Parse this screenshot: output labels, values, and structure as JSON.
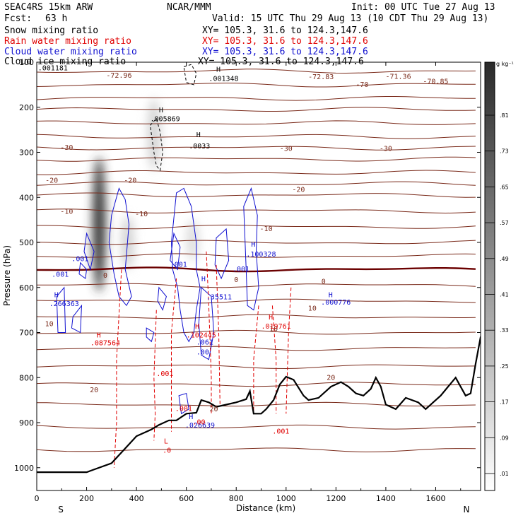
{
  "header": {
    "model": "SEAC4RS 15km ARW",
    "org": "NCAR/MMM",
    "init": "Init: 00 UTC Tue 27 Aug 13",
    "fcst_label": "Fcst:",
    "fcst_value": "63 h",
    "valid": "Valid: 15 UTC Thu 29 Aug 13 (10 CDT Thu 29 Aug 13)",
    "fields": [
      {
        "name": "Snow mixing ratio",
        "xy": "XY= 105.3, 31.6 to 124.3,147.6",
        "color": "#000000"
      },
      {
        "name": "Rain water mixing ratio",
        "xy": "XY= 105.3, 31.6 to 124.3,147.6",
        "color": "#e00000"
      },
      {
        "name": "Cloud water mixing ratio",
        "xy": "XY= 105.3, 31.6 to 124.3,147.6",
        "color": "#1010d0"
      },
      {
        "name": "Cloud ice mixing ratio",
        "xy": "XY= 105.3, 31.6 to 124.3,147.6",
        "color": "#000000"
      }
    ]
  },
  "chart_data": {
    "type": "heatmap",
    "xlabel": "Distance (km)",
    "ylabel": "Pressure (hPa)",
    "xlim": [
      0,
      1700
    ],
    "ylim": [
      1050,
      100
    ],
    "x_ticks": [
      0,
      200,
      400,
      600,
      800,
      1000,
      1200,
      1400,
      1600
    ],
    "y_ticks": [
      100,
      200,
      300,
      400,
      500,
      600,
      700,
      800,
      900,
      1000
    ],
    "x_end_labels": {
      "left": "S",
      "right": "N"
    },
    "colorbar": {
      "unit": "g kg⁻¹",
      "labels": [
        ".01",
        ".09",
        ".17",
        ".25",
        ".33",
        ".41",
        ".49",
        ".57",
        ".65",
        ".73",
        ".81"
      ]
    },
    "ice_shading": [
      {
        "x": 250,
        "p_top": 310,
        "p_bottom": 610,
        "peak": 0.9
      },
      {
        "x": 365,
        "p_top": 440,
        "p_bottom": 560,
        "peak": 0.2
      },
      {
        "x": 470,
        "p_top": 180,
        "p_bottom": 340,
        "peak": 0.2
      },
      {
        "x": 625,
        "p_top": 450,
        "p_bottom": 540,
        "peak": 0.15
      }
    ],
    "isotherms": [
      {
        "p": 120,
        "c": "#7a2a1a"
      },
      {
        "p": 150,
        "c": "#7a2a1a"
      },
      {
        "p": 180,
        "c": "#7a2a1a"
      },
      {
        "p": 205,
        "c": "#7a2a1a"
      },
      {
        "p": 235,
        "c": "#7a2a1a"
      },
      {
        "p": 265,
        "c": "#7a2a1a"
      },
      {
        "p": 290,
        "c": "#7a2a1a"
      },
      {
        "p": 315,
        "c": "#7a2a1a"
      },
      {
        "p": 345,
        "c": "#7a2a1a"
      },
      {
        "p": 370,
        "c": "#7a2a1a"
      },
      {
        "p": 395,
        "c": "#7a2a1a"
      },
      {
        "p": 430,
        "c": "#7a2a1a"
      },
      {
        "p": 465,
        "c": "#7a2a1a"
      },
      {
        "p": 500,
        "c": "#7a2a1a"
      },
      {
        "p": 530,
        "c": "#7a2a1a"
      },
      {
        "p": 560,
        "c": "#6b0000",
        "w": 2.4
      },
      {
        "p": 595,
        "c": "#7a2a1a"
      },
      {
        "p": 630,
        "c": "#7a2a1a"
      },
      {
        "p": 665,
        "c": "#7a2a1a"
      },
      {
        "p": 700,
        "c": "#7a2a1a"
      },
      {
        "p": 735,
        "c": "#7a2a1a"
      },
      {
        "p": 775,
        "c": "#7a2a1a"
      },
      {
        "p": 815,
        "c": "#7a2a1a"
      },
      {
        "p": 860,
        "c": "#7a2a1a"
      },
      {
        "p": 910,
        "c": "#7a2a1a"
      },
      {
        "p": 960,
        "c": "#7a2a1a"
      }
    ],
    "isotherm_labels": [
      {
        "x": 330,
        "p": 130,
        "t": "-72.96"
      },
      {
        "x": 1140,
        "p": 133,
        "t": "-72.83"
      },
      {
        "x": 1305,
        "p": 150,
        "t": "-70"
      },
      {
        "x": 1450,
        "p": 132,
        "t": "-71.36"
      },
      {
        "x": 1600,
        "p": 143,
        "t": "-70.85"
      },
      {
        "x": 120,
        "p": 290,
        "t": "-30"
      },
      {
        "x": 1000,
        "p": 292,
        "t": "-30"
      },
      {
        "x": 1400,
        "p": 292,
        "t": "-30"
      },
      {
        "x": 60,
        "p": 363,
        "t": "-20"
      },
      {
        "x": 375,
        "p": 363,
        "t": "-20"
      },
      {
        "x": 1050,
        "p": 383,
        "t": "-20"
      },
      {
        "x": 120,
        "p": 432,
        "t": "-10"
      },
      {
        "x": 420,
        "p": 437,
        "t": "-10"
      },
      {
        "x": 920,
        "p": 470,
        "t": "-10"
      },
      {
        "x": 275,
        "p": 574,
        "t": "0"
      },
      {
        "x": 800,
        "p": 583,
        "t": "0"
      },
      {
        "x": 1150,
        "p": 587,
        "t": "0"
      },
      {
        "x": 1105,
        "p": 647,
        "t": "10"
      },
      {
        "x": 950,
        "p": 692,
        "t": "10"
      },
      {
        "x": 50,
        "p": 681,
        "t": "10"
      },
      {
        "x": 230,
        "p": 828,
        "t": "20"
      },
      {
        "x": 710,
        "p": 870,
        "t": "20"
      },
      {
        "x": 1180,
        "p": 800,
        "t": "20"
      }
    ],
    "terrain": [
      [
        0,
        1010
      ],
      [
        200,
        1010
      ],
      [
        300,
        990
      ],
      [
        350,
        960
      ],
      [
        400,
        930
      ],
      [
        460,
        915
      ],
      [
        490,
        905
      ],
      [
        530,
        895
      ],
      [
        560,
        895
      ],
      [
        600,
        880
      ],
      [
        640,
        878
      ],
      [
        660,
        850
      ],
      [
        690,
        855
      ],
      [
        720,
        865
      ],
      [
        760,
        860
      ],
      [
        800,
        855
      ],
      [
        840,
        848
      ],
      [
        855,
        830
      ],
      [
        870,
        880
      ],
      [
        900,
        880
      ],
      [
        920,
        870
      ],
      [
        950,
        850
      ],
      [
        975,
        815
      ],
      [
        1000,
        798
      ],
      [
        1030,
        805
      ],
      [
        1070,
        840
      ],
      [
        1090,
        850
      ],
      [
        1130,
        845
      ],
      [
        1180,
        820
      ],
      [
        1220,
        810
      ],
      [
        1250,
        820
      ],
      [
        1280,
        835
      ],
      [
        1310,
        840
      ],
      [
        1340,
        825
      ],
      [
        1360,
        800
      ],
      [
        1380,
        820
      ],
      [
        1400,
        860
      ],
      [
        1440,
        870
      ],
      [
        1480,
        845
      ],
      [
        1530,
        855
      ],
      [
        1560,
        870
      ],
      [
        1590,
        855
      ],
      [
        1620,
        840
      ],
      [
        1650,
        820
      ],
      [
        1680,
        800
      ],
      [
        1720,
        840
      ],
      [
        1740,
        835
      ],
      [
        1760,
        770
      ],
      [
        1780,
        710
      ],
      [
        1800,
        700
      ],
      [
        1820,
        720
      ],
      [
        1835,
        750
      ]
    ],
    "cloud_water_contours": [
      [
        [
          300,
          440
        ],
        [
          330,
          380
        ],
        [
          355,
          405
        ],
        [
          370,
          460
        ],
        [
          355,
          560
        ],
        [
          380,
          620
        ],
        [
          360,
          640
        ],
        [
          330,
          620
        ],
        [
          310,
          570
        ],
        [
          290,
          500
        ],
        [
          300,
          440
        ]
      ],
      [
        [
          200,
          480
        ],
        [
          230,
          520
        ],
        [
          215,
          560
        ],
        [
          190,
          520
        ],
        [
          200,
          480
        ]
      ],
      [
        [
          175,
          545
        ],
        [
          200,
          560
        ],
        [
          195,
          580
        ],
        [
          170,
          570
        ],
        [
          175,
          545
        ]
      ],
      [
        [
          550,
          480
        ],
        [
          575,
          510
        ],
        [
          565,
          560
        ],
        [
          535,
          540
        ],
        [
          550,
          480
        ]
      ],
      [
        [
          560,
          390
        ],
        [
          590,
          380
        ],
        [
          620,
          420
        ],
        [
          640,
          500
        ],
        [
          640,
          560
        ],
        [
          655,
          600
        ],
        [
          640,
          650
        ],
        [
          630,
          700
        ],
        [
          610,
          720
        ],
        [
          590,
          700
        ],
        [
          575,
          650
        ],
        [
          565,
          600
        ],
        [
          545,
          560
        ],
        [
          540,
          500
        ],
        [
          560,
          390
        ]
      ],
      [
        [
          490,
          600
        ],
        [
          520,
          620
        ],
        [
          505,
          650
        ],
        [
          485,
          630
        ],
        [
          490,
          600
        ]
      ],
      [
        [
          440,
          690
        ],
        [
          470,
          700
        ],
        [
          460,
          720
        ],
        [
          440,
          710
        ],
        [
          440,
          690
        ]
      ],
      [
        [
          660,
          600
        ],
        [
          700,
          620
        ],
        [
          710,
          700
        ],
        [
          690,
          760
        ],
        [
          660,
          750
        ],
        [
          650,
          680
        ],
        [
          660,
          600
        ]
      ],
      [
        [
          720,
          490
        ],
        [
          760,
          470
        ],
        [
          770,
          540
        ],
        [
          740,
          580
        ],
        [
          715,
          550
        ],
        [
          720,
          490
        ]
      ],
      [
        [
          830,
          420
        ],
        [
          860,
          380
        ],
        [
          885,
          440
        ],
        [
          880,
          520
        ],
        [
          890,
          600
        ],
        [
          870,
          650
        ],
        [
          845,
          640
        ],
        [
          840,
          560
        ],
        [
          830,
          420
        ]
      ],
      [
        [
          570,
          840
        ],
        [
          600,
          835
        ],
        [
          610,
          870
        ],
        [
          580,
          880
        ],
        [
          570,
          840
        ]
      ],
      [
        [
          80,
          620
        ],
        [
          110,
          600
        ],
        [
          115,
          700
        ],
        [
          85,
          700
        ],
        [
          80,
          620
        ]
      ],
      [
        [
          145,
          665
        ],
        [
          180,
          640
        ],
        [
          175,
          700
        ],
        [
          140,
          690
        ],
        [
          145,
          665
        ]
      ]
    ],
    "rain_dashes": [
      [
        [
          340,
          560
        ],
        [
          330,
          660
        ],
        [
          320,
          760
        ],
        [
          320,
          900
        ],
        [
          310,
          1000
        ]
      ],
      [
        [
          560,
          580
        ],
        [
          540,
          700
        ],
        [
          540,
          820
        ],
        [
          540,
          920
        ]
      ],
      [
        [
          480,
          650
        ],
        [
          470,
          800
        ],
        [
          475,
          880
        ],
        [
          470,
          940
        ]
      ],
      [
        [
          680,
          520
        ],
        [
          690,
          640
        ],
        [
          700,
          800
        ],
        [
          700,
          880
        ]
      ],
      [
        [
          720,
          550
        ],
        [
          730,
          700
        ],
        [
          735,
          860
        ]
      ],
      [
        [
          890,
          640
        ],
        [
          870,
          760
        ],
        [
          870,
          880
        ]
      ],
      [
        [
          945,
          640
        ],
        [
          960,
          760
        ],
        [
          960,
          880
        ]
      ],
      [
        [
          1020,
          600
        ],
        [
          1010,
          700
        ],
        [
          1000,
          880
        ]
      ]
    ],
    "ice_dashes": [
      [
        [
          455,
          240
        ],
        [
          480,
          225
        ],
        [
          495,
          255
        ],
        [
          505,
          300
        ],
        [
          495,
          340
        ],
        [
          480,
          330
        ],
        [
          470,
          300
        ],
        [
          460,
          260
        ],
        [
          455,
          240
        ]
      ],
      [
        [
          590,
          110
        ],
        [
          620,
          105
        ],
        [
          640,
          125
        ],
        [
          630,
          150
        ],
        [
          600,
          145
        ],
        [
          590,
          110
        ]
      ]
    ],
    "point_labels": [
      {
        "x": 5,
        "p": 112,
        "t": ".001181",
        "color": "#000000"
      },
      {
        "x": 720,
        "p": 115,
        "t": "H",
        "color": "#000000"
      },
      {
        "x": 690,
        "p": 135,
        "t": ".001348",
        "color": "#000000"
      },
      {
        "x": 490,
        "p": 205,
        "t": "H",
        "color": "#000000"
      },
      {
        "x": 455,
        "p": 225,
        "t": ".005869",
        "color": "#000000"
      },
      {
        "x": 640,
        "p": 260,
        "t": "H",
        "color": "#000000"
      },
      {
        "x": 610,
        "p": 285,
        "t": ".0033",
        "color": "#000000"
      },
      {
        "x": 140,
        "p": 535,
        "t": ".001",
        "color": "#1010d0"
      },
      {
        "x": 60,
        "p": 570,
        "t": ".001",
        "color": "#1010d0"
      },
      {
        "x": 70,
        "p": 615,
        "t": "H",
        "color": "#1010d0"
      },
      {
        "x": 50,
        "p": 635,
        "t": ".266363",
        "color": "#1010d0"
      },
      {
        "x": 535,
        "p": 548,
        "t": ".001",
        "color": "#1010d0"
      },
      {
        "x": 860,
        "p": 503,
        "t": "H",
        "color": "#1010d0"
      },
      {
        "x": 840,
        "p": 525,
        "t": ".100328",
        "color": "#1010d0"
      },
      {
        "x": 785,
        "p": 558,
        "t": ".001",
        "color": "#1010d0"
      },
      {
        "x": 660,
        "p": 580,
        "t": "H",
        "color": "#1010d0"
      },
      {
        "x": 680,
        "p": 620,
        "t": ".35511",
        "color": "#1010d0"
      },
      {
        "x": 1170,
        "p": 615,
        "t": "H",
        "color": "#1010d0"
      },
      {
        "x": 1140,
        "p": 632,
        "t": ".000776",
        "color": "#1010d0"
      },
      {
        "x": 640,
        "p": 720,
        "t": ".061",
        "color": "#1010d0"
      },
      {
        "x": 640,
        "p": 742,
        "t": ".00",
        "color": "#1010d0"
      },
      {
        "x": 610,
        "p": 886,
        "t": "H",
        "color": "#1010d0"
      },
      {
        "x": 595,
        "p": 905,
        "t": ".026639",
        "color": "#1010d0"
      },
      {
        "x": 635,
        "p": 685,
        "t": "H",
        "color": "#e00000"
      },
      {
        "x": 600,
        "p": 705,
        "t": ".102445",
        "color": "#e00000"
      },
      {
        "x": 930,
        "p": 665,
        "t": "H",
        "color": "#e00000"
      },
      {
        "x": 900,
        "p": 685,
        "t": ".019761",
        "color": "#e00000"
      },
      {
        "x": 240,
        "p": 705,
        "t": "H",
        "color": "#e00000"
      },
      {
        "x": 215,
        "p": 722,
        "t": ".087564",
        "color": "#e00000"
      },
      {
        "x": 480,
        "p": 790,
        "t": ".001",
        "color": "#e00000"
      },
      {
        "x": 555,
        "p": 868,
        "t": ".001",
        "color": "#e00000"
      },
      {
        "x": 625,
        "p": 898,
        "t": ".00",
        "color": "#e00000"
      },
      {
        "x": 945,
        "p": 918,
        "t": ".001",
        "color": "#e00000"
      },
      {
        "x": 510,
        "p": 940,
        "t": "L",
        "color": "#e00000"
      },
      {
        "x": 505,
        "p": 960,
        "t": ".0",
        "color": "#e00000"
      }
    ]
  }
}
